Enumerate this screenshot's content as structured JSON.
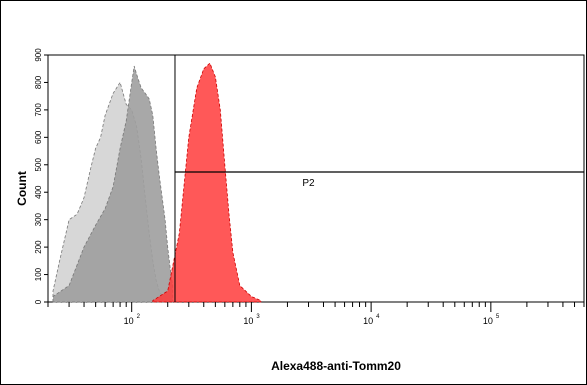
{
  "chart_data": {
    "type": "area",
    "title": "",
    "xlabel": "Alexa488-anti-Tomm20",
    "ylabel": "Count",
    "x_scale": "log",
    "xlim": [
      20,
      600000
    ],
    "ylim": [
      0,
      900
    ],
    "x_ticks": [
      {
        "value": 100,
        "base": "10",
        "exp": "2"
      },
      {
        "value": 1000,
        "base": "10",
        "exp": "3"
      },
      {
        "value": 10000,
        "base": "10",
        "exp": "4"
      },
      {
        "value": 100000,
        "base": "10",
        "exp": "5"
      }
    ],
    "y_ticks": [
      0,
      100,
      200,
      300,
      400,
      500,
      600,
      700,
      800,
      900
    ],
    "y_tick_labels": [
      "0",
      "100",
      "200",
      "300",
      "400",
      "500",
      "600",
      "700",
      "800",
      "900"
    ],
    "series": [
      {
        "color": "#d3d3d3",
        "x": [
          22,
          25,
          30,
          35,
          40,
          45,
          50,
          55,
          60,
          70,
          80,
          90,
          100,
          110,
          120,
          130,
          140,
          150,
          160,
          170,
          180
        ],
        "y": [
          40,
          150,
          300,
          320,
          380,
          480,
          560,
          600,
          680,
          760,
          800,
          720,
          700,
          640,
          520,
          380,
          250,
          150,
          80,
          40,
          20
        ]
      },
      {
        "color": "#9e9e9e",
        "x": [
          22,
          30,
          40,
          50,
          60,
          70,
          80,
          90,
          100,
          105,
          110,
          120,
          130,
          140,
          150,
          160,
          170,
          180,
          190,
          200,
          210,
          220
        ],
        "y": [
          20,
          60,
          200,
          280,
          340,
          420,
          560,
          660,
          800,
          860,
          830,
          780,
          760,
          740,
          680,
          560,
          460,
          380,
          300,
          200,
          120,
          60
        ]
      },
      {
        "color": "#ff3b3b",
        "x": [
          150,
          200,
          250,
          300,
          350,
          400,
          450,
          500,
          550,
          600,
          650,
          700,
          800,
          1000,
          1200
        ],
        "y": [
          5,
          40,
          250,
          600,
          780,
          850,
          870,
          820,
          700,
          500,
          320,
          180,
          60,
          20,
          5
        ]
      }
    ],
    "gate": {
      "name": "P2",
      "x_start": 230,
      "x_end": 600000
    }
  }
}
